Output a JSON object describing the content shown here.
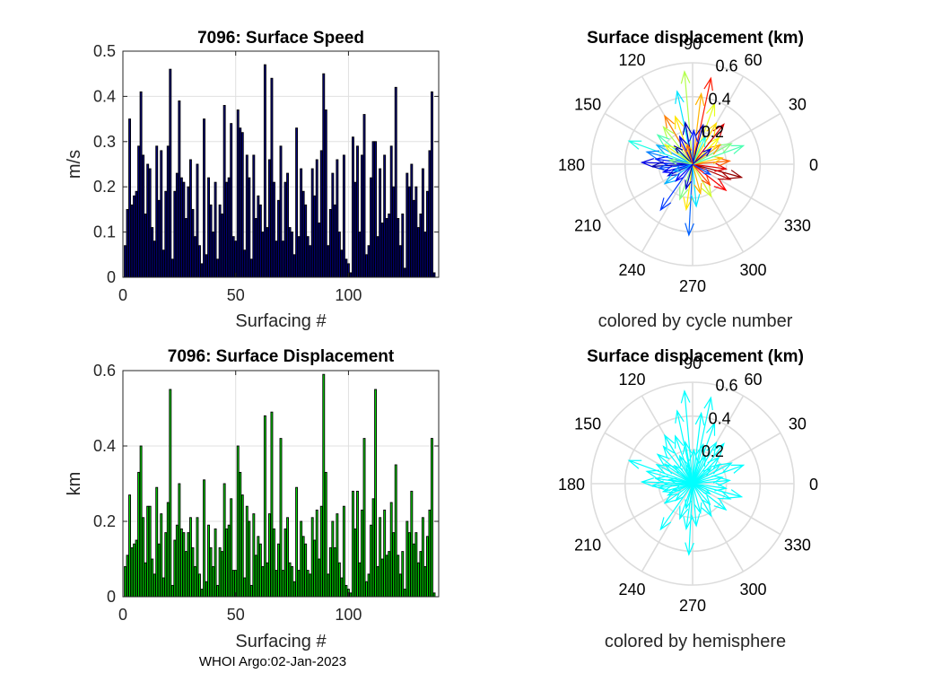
{
  "figure": {
    "footer": "WHOI Argo:02-Jan-2023"
  },
  "chart_data": [
    {
      "type": "bar",
      "title": "7096: Surface Speed",
      "xlabel": "Surfacing #",
      "ylabel": "m/s",
      "xlim": [
        0,
        140
      ],
      "ylim": [
        0,
        0.5
      ],
      "xticks": [
        "0",
        "50",
        "100"
      ],
      "yticks": [
        "0",
        "0.1",
        "0.2",
        "0.3",
        "0.4",
        "0.5"
      ],
      "grid": true,
      "bar_color": "#000080",
      "x": [
        1,
        2,
        3,
        4,
        5,
        6,
        7,
        8,
        9,
        10,
        11,
        12,
        13,
        14,
        15,
        16,
        17,
        18,
        19,
        20,
        21,
        22,
        23,
        24,
        25,
        26,
        27,
        28,
        29,
        30,
        31,
        32,
        33,
        34,
        35,
        36,
        37,
        38,
        39,
        40,
        41,
        42,
        43,
        44,
        45,
        46,
        47,
        48,
        49,
        50,
        51,
        52,
        53,
        54,
        55,
        56,
        57,
        58,
        59,
        60,
        61,
        62,
        63,
        64,
        65,
        66,
        67,
        68,
        69,
        70,
        71,
        72,
        73,
        74,
        75,
        76,
        77,
        78,
        79,
        80,
        81,
        82,
        83,
        84,
        85,
        86,
        87,
        88,
        89,
        90,
        91,
        92,
        93,
        94,
        95,
        96,
        97,
        98,
        99,
        100,
        101,
        102,
        103,
        104,
        105,
        106,
        107,
        108,
        109,
        110,
        111,
        112,
        113,
        114,
        115,
        116,
        117,
        118,
        119,
        120,
        121,
        122,
        123,
        124,
        125,
        126,
        127,
        128,
        129,
        130,
        131,
        132,
        133,
        134,
        135,
        136,
        137,
        138
      ],
      "values": [
        0.07,
        0.15,
        0.35,
        0.16,
        0.18,
        0.19,
        0.29,
        0.41,
        0.27,
        0.14,
        0.25,
        0.24,
        0.11,
        0.08,
        0.29,
        0.17,
        0.28,
        0.06,
        0.19,
        0.29,
        0.46,
        0.04,
        0.19,
        0.23,
        0.39,
        0.22,
        0.21,
        0.13,
        0.2,
        0.26,
        0.15,
        0.09,
        0.25,
        0.07,
        0.03,
        0.35,
        0.05,
        0.22,
        0.16,
        0.1,
        0.21,
        0.04,
        0.16,
        0.14,
        0.38,
        0.21,
        0.22,
        0.34,
        0.09,
        0.08,
        0.37,
        0.33,
        0.32,
        0.06,
        0.27,
        0.22,
        0.04,
        0.27,
        0.13,
        0.18,
        0.16,
        0.1,
        0.47,
        0.11,
        0.26,
        0.44,
        0.21,
        0.08,
        0.17,
        0.29,
        0.08,
        0.21,
        0.23,
        0.11,
        0.1,
        0.05,
        0.33,
        0.09,
        0.24,
        0.19,
        0.16,
        0.09,
        0.07,
        0.24,
        0.18,
        0.26,
        0.12,
        0.28,
        0.45,
        0.37,
        0.07,
        0.15,
        0.23,
        0.16,
        0.26,
        0.1,
        0.06,
        0.27,
        0.04,
        0.03,
        0.01,
        0.31,
        0.21,
        0.29,
        0.1,
        0.27,
        0.36,
        0.05,
        0.07,
        0.22,
        0.3,
        0.3,
        0.09,
        0.24,
        0.12,
        0.27,
        0.13,
        0.14,
        0.29,
        0.2,
        0.42,
        0.13,
        0.07,
        0.14,
        0.02,
        0.23,
        0.2,
        0.25,
        0.17,
        0.2,
        0.11,
        0.14,
        0.24,
        0.1,
        0.19,
        0.28,
        0.41,
        0.01
      ]
    },
    {
      "type": "vector-polar",
      "title": "Surface displacement (km)",
      "caption": "colored by cycle number",
      "color_mode": "cycle",
      "rmax": 0.6,
      "rlabels": [
        "0.2",
        "0.4",
        "0.6"
      ],
      "angle_labels": [
        "0",
        "30",
        "60",
        "90",
        "120",
        "150",
        "180",
        "210",
        "240",
        "270",
        "300",
        "330"
      ],
      "vectors": [
        {
          "angle": 95,
          "r": 0.55,
          "cycle": 0.55
        },
        {
          "angle": 78,
          "r": 0.52,
          "cycle": 0.85
        },
        {
          "angle": 83,
          "r": 0.42,
          "cycle": 0.7
        },
        {
          "angle": 70,
          "r": 0.38,
          "cycle": 0.6
        },
        {
          "angle": 102,
          "r": 0.44,
          "cycle": 0.35
        },
        {
          "angle": 110,
          "r": 0.3,
          "cycle": 0.65
        },
        {
          "angle": 120,
          "r": 0.33,
          "cycle": 0.75
        },
        {
          "angle": 128,
          "r": 0.28,
          "cycle": 0.55
        },
        {
          "angle": 140,
          "r": 0.27,
          "cycle": 0.45
        },
        {
          "angle": 152,
          "r": 0.24,
          "cycle": 0.3
        },
        {
          "angle": 160,
          "r": 0.4,
          "cycle": 0.4
        },
        {
          "angle": 165,
          "r": 0.28,
          "cycle": 0.25
        },
        {
          "angle": 172,
          "r": 0.22,
          "cycle": 0.15
        },
        {
          "angle": 178,
          "r": 0.3,
          "cycle": 0.1
        },
        {
          "angle": 183,
          "r": 0.24,
          "cycle": 0.05
        },
        {
          "angle": 187,
          "r": 0.2,
          "cycle": 0.2
        },
        {
          "angle": 195,
          "r": 0.18,
          "cycle": 0.12
        },
        {
          "angle": 205,
          "r": 0.16,
          "cycle": 0.08
        },
        {
          "angle": 215,
          "r": 0.2,
          "cycle": 0.3
        },
        {
          "angle": 235,
          "r": 0.33,
          "cycle": 0.18
        },
        {
          "angle": 250,
          "r": 0.22,
          "cycle": 0.5
        },
        {
          "angle": 262,
          "r": 0.27,
          "cycle": 0.65
        },
        {
          "angle": 267,
          "r": 0.42,
          "cycle": 0.22
        },
        {
          "angle": 275,
          "r": 0.25,
          "cycle": 0.35
        },
        {
          "angle": 285,
          "r": 0.18,
          "cycle": 0.7
        },
        {
          "angle": 300,
          "r": 0.22,
          "cycle": 0.58
        },
        {
          "angle": 310,
          "r": 0.16,
          "cycle": 0.8
        },
        {
          "angle": 322,
          "r": 0.25,
          "cycle": 0.88
        },
        {
          "angle": 338,
          "r": 0.24,
          "cycle": 0.95
        },
        {
          "angle": 345,
          "r": 0.3,
          "cycle": 0.98
        },
        {
          "angle": 352,
          "r": 0.2,
          "cycle": 0.9
        },
        {
          "angle": 5,
          "r": 0.22,
          "cycle": 0.78
        },
        {
          "angle": 12,
          "r": 0.18,
          "cycle": 0.68
        },
        {
          "angle": 20,
          "r": 0.32,
          "cycle": 0.45
        },
        {
          "angle": 28,
          "r": 0.26,
          "cycle": 0.5
        },
        {
          "angle": 35,
          "r": 0.2,
          "cycle": 0.72
        },
        {
          "angle": 45,
          "r": 0.22,
          "cycle": 0.62
        },
        {
          "angle": 52,
          "r": 0.3,
          "cycle": 0.92
        },
        {
          "angle": 60,
          "r": 0.28,
          "cycle": 0.66
        },
        {
          "angle": 65,
          "r": 0.18,
          "cycle": 0.4
        },
        {
          "angle": 88,
          "r": 0.2,
          "cycle": 0.15
        },
        {
          "angle": 100,
          "r": 0.25,
          "cycle": 0.05
        },
        {
          "angle": 115,
          "r": 0.18,
          "cycle": 0.1
        },
        {
          "angle": 135,
          "r": 0.15,
          "cycle": 0.02
        },
        {
          "angle": 145,
          "r": 0.2,
          "cycle": 0.6
        },
        {
          "angle": 170,
          "r": 0.14,
          "cycle": 0.5
        },
        {
          "angle": 200,
          "r": 0.12,
          "cycle": 0.28
        },
        {
          "angle": 225,
          "r": 0.14,
          "cycle": 0.12
        },
        {
          "angle": 255,
          "r": 0.15,
          "cycle": 0.07
        },
        {
          "angle": 330,
          "r": 0.12,
          "cycle": 0.2
        },
        {
          "angle": 40,
          "r": 0.14,
          "cycle": 0.08
        },
        {
          "angle": 75,
          "r": 0.24,
          "cycle": 0.03
        },
        {
          "angle": 105,
          "r": 0.12,
          "cycle": 0.78
        }
      ]
    },
    {
      "type": "bar",
      "title": "7096: Surface Displacement",
      "xlabel": "Surfacing #",
      "ylabel": "km",
      "xlim": [
        0,
        140
      ],
      "ylim": [
        0,
        0.6
      ],
      "xticks": [
        "0",
        "50",
        "100"
      ],
      "yticks": [
        "0",
        "0.2",
        "0.4",
        "0.6"
      ],
      "grid": true,
      "bar_color": "#00dd00",
      "x": [
        1,
        2,
        3,
        4,
        5,
        6,
        7,
        8,
        9,
        10,
        11,
        12,
        13,
        14,
        15,
        16,
        17,
        18,
        19,
        20,
        21,
        22,
        23,
        24,
        25,
        26,
        27,
        28,
        29,
        30,
        31,
        32,
        33,
        34,
        35,
        36,
        37,
        38,
        39,
        40,
        41,
        42,
        43,
        44,
        45,
        46,
        47,
        48,
        49,
        50,
        51,
        52,
        53,
        54,
        55,
        56,
        57,
        58,
        59,
        60,
        61,
        62,
        63,
        64,
        65,
        66,
        67,
        68,
        69,
        70,
        71,
        72,
        73,
        74,
        75,
        76,
        77,
        78,
        79,
        80,
        81,
        82,
        83,
        84,
        85,
        86,
        87,
        88,
        89,
        90,
        91,
        92,
        93,
        94,
        95,
        96,
        97,
        98,
        99,
        100,
        101,
        102,
        103,
        104,
        105,
        106,
        107,
        108,
        109,
        110,
        111,
        112,
        113,
        114,
        115,
        116,
        117,
        118,
        119,
        120,
        121,
        122,
        123,
        124,
        125,
        126,
        127,
        128,
        129,
        130,
        131,
        132,
        133,
        134,
        135,
        136,
        137,
        138
      ],
      "values": [
        0.08,
        0.11,
        0.27,
        0.13,
        0.14,
        0.15,
        0.33,
        0.4,
        0.21,
        0.09,
        0.24,
        0.24,
        0.1,
        0.06,
        0.29,
        0.14,
        0.22,
        0.05,
        0.17,
        0.25,
        0.55,
        0.03,
        0.15,
        0.19,
        0.3,
        0.18,
        0.17,
        0.12,
        0.17,
        0.21,
        0.13,
        0.08,
        0.21,
        0.06,
        0.02,
        0.31,
        0.04,
        0.19,
        0.13,
        0.08,
        0.18,
        0.03,
        0.13,
        0.12,
        0.3,
        0.18,
        0.19,
        0.26,
        0.07,
        0.07,
        0.4,
        0.33,
        0.27,
        0.05,
        0.24,
        0.2,
        0.03,
        0.22,
        0.11,
        0.16,
        0.14,
        0.08,
        0.48,
        0.09,
        0.22,
        0.49,
        0.18,
        0.07,
        0.14,
        0.42,
        0.07,
        0.18,
        0.21,
        0.09,
        0.08,
        0.04,
        0.29,
        0.07,
        0.2,
        0.16,
        0.14,
        0.07,
        0.06,
        0.21,
        0.15,
        0.23,
        0.1,
        0.24,
        0.59,
        0.33,
        0.06,
        0.13,
        0.2,
        0.13,
        0.22,
        0.09,
        0.05,
        0.24,
        0.03,
        0.02,
        0.01,
        0.28,
        0.18,
        0.28,
        0.09,
        0.23,
        0.42,
        0.04,
        0.06,
        0.19,
        0.26,
        0.55,
        0.08,
        0.21,
        0.1,
        0.23,
        0.11,
        0.12,
        0.25,
        0.17,
        0.35,
        0.11,
        0.06,
        0.12,
        0.02,
        0.2,
        0.17,
        0.28,
        0.14,
        0.17,
        0.09,
        0.12,
        0.21,
        0.08,
        0.16,
        0.23,
        0.42,
        0.01
      ]
    },
    {
      "type": "vector-polar",
      "title": "Surface displacement (km)",
      "caption": "colored by hemisphere",
      "color_mode": "single",
      "color": "#00ffff",
      "rmax": 0.6,
      "rlabels": [
        "0.2",
        "0.4",
        "0.6"
      ],
      "angle_labels": [
        "0",
        "30",
        "60",
        "90",
        "120",
        "150",
        "180",
        "210",
        "240",
        "270",
        "300",
        "330"
      ],
      "vectors": [
        {
          "angle": 95,
          "r": 0.55
        },
        {
          "angle": 78,
          "r": 0.52
        },
        {
          "angle": 83,
          "r": 0.42
        },
        {
          "angle": 70,
          "r": 0.38
        },
        {
          "angle": 102,
          "r": 0.44
        },
        {
          "angle": 110,
          "r": 0.3
        },
        {
          "angle": 120,
          "r": 0.33
        },
        {
          "angle": 128,
          "r": 0.28
        },
        {
          "angle": 140,
          "r": 0.27
        },
        {
          "angle": 152,
          "r": 0.24
        },
        {
          "angle": 160,
          "r": 0.4
        },
        {
          "angle": 165,
          "r": 0.28
        },
        {
          "angle": 172,
          "r": 0.22
        },
        {
          "angle": 178,
          "r": 0.3
        },
        {
          "angle": 183,
          "r": 0.24
        },
        {
          "angle": 187,
          "r": 0.2
        },
        {
          "angle": 195,
          "r": 0.18
        },
        {
          "angle": 205,
          "r": 0.16
        },
        {
          "angle": 215,
          "r": 0.2
        },
        {
          "angle": 235,
          "r": 0.33
        },
        {
          "angle": 250,
          "r": 0.22
        },
        {
          "angle": 262,
          "r": 0.27
        },
        {
          "angle": 267,
          "r": 0.42
        },
        {
          "angle": 275,
          "r": 0.25
        },
        {
          "angle": 285,
          "r": 0.18
        },
        {
          "angle": 300,
          "r": 0.22
        },
        {
          "angle": 310,
          "r": 0.16
        },
        {
          "angle": 322,
          "r": 0.25
        },
        {
          "angle": 338,
          "r": 0.24
        },
        {
          "angle": 345,
          "r": 0.3
        },
        {
          "angle": 352,
          "r": 0.2
        },
        {
          "angle": 5,
          "r": 0.22
        },
        {
          "angle": 12,
          "r": 0.18
        },
        {
          "angle": 20,
          "r": 0.32
        },
        {
          "angle": 28,
          "r": 0.26
        },
        {
          "angle": 35,
          "r": 0.2
        },
        {
          "angle": 45,
          "r": 0.22
        },
        {
          "angle": 52,
          "r": 0.3
        },
        {
          "angle": 60,
          "r": 0.28
        },
        {
          "angle": 65,
          "r": 0.18
        },
        {
          "angle": 88,
          "r": 0.2
        },
        {
          "angle": 100,
          "r": 0.25
        },
        {
          "angle": 115,
          "r": 0.18
        },
        {
          "angle": 135,
          "r": 0.15
        },
        {
          "angle": 145,
          "r": 0.2
        },
        {
          "angle": 170,
          "r": 0.14
        },
        {
          "angle": 200,
          "r": 0.12
        },
        {
          "angle": 225,
          "r": 0.14
        },
        {
          "angle": 255,
          "r": 0.15
        },
        {
          "angle": 330,
          "r": 0.12
        },
        {
          "angle": 40,
          "r": 0.14
        },
        {
          "angle": 75,
          "r": 0.24
        },
        {
          "angle": 105,
          "r": 0.12
        }
      ]
    }
  ]
}
